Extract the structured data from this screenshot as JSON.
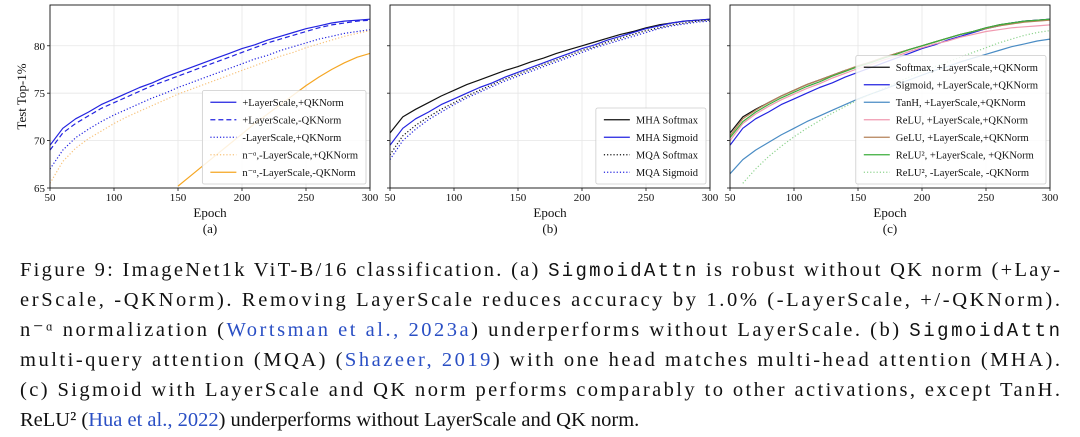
{
  "chart_data": [
    {
      "type": "line",
      "label": "(a)",
      "xlabel": "Epoch",
      "ylabel": "Test Top-1%",
      "x": [
        50,
        60,
        70,
        80,
        90,
        100,
        110,
        120,
        130,
        140,
        150,
        160,
        170,
        180,
        190,
        200,
        210,
        220,
        230,
        240,
        250,
        260,
        270,
        280,
        290,
        300
      ],
      "xlim": [
        50,
        300
      ],
      "ylim": [
        65,
        84.3
      ],
      "xticks": [
        50,
        100,
        150,
        200,
        250,
        300
      ],
      "yticks": [
        65,
        70,
        75,
        80
      ],
      "grid": true,
      "legend": "lower right",
      "series": [
        {
          "name": "+LayerScale,+QKNorm",
          "color": "#2323e0",
          "dash": "solid",
          "values": [
            69.5,
            71.3,
            72.3,
            73.0,
            73.8,
            74.4,
            75.0,
            75.6,
            76.1,
            76.7,
            77.2,
            77.7,
            78.2,
            78.7,
            79.2,
            79.7,
            80.1,
            80.6,
            81.0,
            81.4,
            81.8,
            82.1,
            82.4,
            82.6,
            82.7,
            82.8
          ]
        },
        {
          "name": "+LayerScale,-QKNorm",
          "color": "#2323e0",
          "dash": "dashed",
          "values": [
            69.0,
            70.8,
            71.8,
            72.6,
            73.4,
            74.0,
            74.6,
            75.2,
            75.8,
            76.3,
            76.8,
            77.3,
            77.8,
            78.3,
            78.8,
            79.3,
            79.8,
            80.3,
            80.7,
            81.1,
            81.5,
            81.9,
            82.2,
            82.4,
            82.6,
            82.7
          ]
        },
        {
          "name": "-LayerScale,+QKNorm",
          "color": "#2323e0",
          "dash": "dotted",
          "values": [
            67.0,
            69.0,
            70.3,
            71.2,
            72.0,
            72.7,
            73.3,
            73.9,
            74.5,
            75.0,
            75.6,
            76.1,
            76.6,
            77.1,
            77.6,
            78.1,
            78.6,
            79.0,
            79.5,
            79.9,
            80.3,
            80.7,
            81.0,
            81.3,
            81.5,
            81.7
          ]
        },
        {
          "name": "n⁻ᵅ,-LayerScale,+QKNorm",
          "color": "#f7c27a",
          "dash": "dotted",
          "values": [
            65.5,
            67.8,
            69.2,
            70.2,
            71.0,
            71.8,
            72.5,
            73.1,
            73.7,
            74.3,
            74.9,
            75.4,
            75.9,
            76.4,
            76.9,
            77.4,
            77.9,
            78.4,
            78.9,
            79.3,
            79.8,
            80.2,
            80.6,
            81.0,
            81.3,
            81.6
          ]
        },
        {
          "name": "n⁻ᵅ,-LayerScale,-QKNorm",
          "color": "#f5a623",
          "dash": "solid",
          "values": [
            null,
            null,
            null,
            null,
            null,
            null,
            null,
            null,
            null,
            null,
            65.2,
            66.3,
            67.4,
            68.5,
            69.6,
            70.7,
            71.8,
            72.8,
            73.8,
            74.8,
            75.8,
            76.7,
            77.5,
            78.2,
            78.8,
            79.2
          ]
        }
      ]
    },
    {
      "type": "line",
      "label": "(b)",
      "xlabel": "Epoch",
      "x": [
        50,
        60,
        70,
        80,
        90,
        100,
        110,
        120,
        130,
        140,
        150,
        160,
        170,
        180,
        190,
        200,
        210,
        220,
        230,
        240,
        250,
        260,
        270,
        280,
        290,
        300
      ],
      "xlim": [
        50,
        300
      ],
      "ylim": [
        65,
        84.3
      ],
      "xticks": [
        50,
        100,
        150,
        200,
        250,
        300
      ],
      "yticks": [
        65,
        70,
        75,
        80
      ],
      "grid": true,
      "legend": "lower right",
      "series": [
        {
          "name": "MHA Softmax",
          "color": "#111111",
          "dash": "solid",
          "values": [
            70.8,
            72.5,
            73.3,
            74.0,
            74.7,
            75.3,
            75.9,
            76.4,
            76.9,
            77.4,
            77.8,
            78.3,
            78.7,
            79.2,
            79.6,
            80.0,
            80.4,
            80.8,
            81.2,
            81.5,
            81.9,
            82.2,
            82.4,
            82.6,
            82.7,
            82.8
          ]
        },
        {
          "name": "MHA Sigmoid",
          "color": "#2323e0",
          "dash": "solid",
          "values": [
            69.5,
            71.3,
            72.3,
            73.0,
            73.8,
            74.4,
            75.0,
            75.6,
            76.1,
            76.7,
            77.2,
            77.7,
            78.2,
            78.7,
            79.2,
            79.7,
            80.1,
            80.6,
            81.0,
            81.4,
            81.8,
            82.1,
            82.4,
            82.6,
            82.7,
            82.8
          ]
        },
        {
          "name": "MQA Softmax",
          "color": "#111111",
          "dash": "dotted",
          "values": [
            68.5,
            70.5,
            71.6,
            72.5,
            73.3,
            74.0,
            74.7,
            75.3,
            75.9,
            76.5,
            77.0,
            77.5,
            78.0,
            78.5,
            79.0,
            79.5,
            79.9,
            80.4,
            80.8,
            81.2,
            81.6,
            81.9,
            82.2,
            82.4,
            82.6,
            82.7
          ]
        },
        {
          "name": "MQA Sigmoid",
          "color": "#2323e0",
          "dash": "dotted",
          "values": [
            68.0,
            70.0,
            71.2,
            72.2,
            73.0,
            73.8,
            74.5,
            75.1,
            75.7,
            76.3,
            76.8,
            77.3,
            77.8,
            78.3,
            78.8,
            79.3,
            79.8,
            80.2,
            80.6,
            81.0,
            81.4,
            81.8,
            82.1,
            82.3,
            82.5,
            82.6
          ]
        }
      ]
    },
    {
      "type": "line",
      "label": "(c)",
      "xlabel": "Epoch",
      "x": [
        50,
        60,
        70,
        80,
        90,
        100,
        110,
        120,
        130,
        140,
        150,
        160,
        170,
        180,
        190,
        200,
        210,
        220,
        230,
        240,
        250,
        260,
        270,
        280,
        290,
        300
      ],
      "xlim": [
        50,
        300
      ],
      "ylim": [
        65,
        84.3
      ],
      "xticks": [
        50,
        100,
        150,
        200,
        250,
        300
      ],
      "yticks": [
        65,
        70,
        75,
        80
      ],
      "grid": true,
      "legend": "lower right",
      "series": [
        {
          "name": "Softmax, +LayerScale,+QKNorm",
          "color": "#111111",
          "dash": "solid",
          "values": [
            70.8,
            72.5,
            73.3,
            74.0,
            74.7,
            75.3,
            75.9,
            76.4,
            76.9,
            77.4,
            77.8,
            78.3,
            78.7,
            79.2,
            79.6,
            80.0,
            80.4,
            80.8,
            81.2,
            81.5,
            81.9,
            82.2,
            82.4,
            82.6,
            82.7,
            82.8
          ]
        },
        {
          "name": "Sigmoid, +LayerScale,+QKNorm",
          "color": "#2323e0",
          "dash": "solid",
          "values": [
            69.5,
            71.3,
            72.3,
            73.0,
            73.8,
            74.4,
            75.0,
            75.6,
            76.1,
            76.7,
            77.2,
            77.7,
            78.2,
            78.7,
            79.2,
            79.7,
            80.1,
            80.6,
            81.0,
            81.4,
            81.8,
            82.1,
            82.4,
            82.6,
            82.7,
            82.8
          ]
        },
        {
          "name": "TanH, +LayerScale,+QKNorm",
          "color": "#4a8cc4",
          "dash": "solid",
          "values": [
            66.5,
            68.0,
            69.0,
            69.8,
            70.6,
            71.3,
            72.0,
            72.6,
            73.2,
            73.8,
            74.4,
            74.9,
            75.4,
            75.9,
            76.4,
            76.9,
            77.4,
            77.8,
            78.3,
            78.7,
            79.1,
            79.5,
            79.9,
            80.2,
            80.5,
            80.7
          ]
        },
        {
          "name": "ReLU, +LayerScale,+QKNorm",
          "color": "#f09ab0",
          "dash": "solid",
          "values": [
            70.0,
            71.8,
            72.8,
            73.6,
            74.3,
            74.9,
            75.5,
            76.0,
            76.6,
            77.1,
            77.6,
            78.0,
            78.5,
            78.9,
            79.4,
            79.8,
            80.2,
            80.5,
            80.9,
            81.2,
            81.5,
            81.7,
            81.9,
            82.0,
            82.1,
            82.2
          ]
        },
        {
          "name": "GeLU, +LayerScale,+QKNorm",
          "color": "#b5835a",
          "dash": "solid",
          "values": [
            70.5,
            72.3,
            73.2,
            74.0,
            74.7,
            75.3,
            75.9,
            76.4,
            76.9,
            77.4,
            77.9,
            78.3,
            78.8,
            79.2,
            79.6,
            80.0,
            80.4,
            80.8,
            81.2,
            81.5,
            81.8,
            82.1,
            82.3,
            82.5,
            82.6,
            82.7
          ]
        },
        {
          "name": "ReLU², +LayerScale, +QKNorm",
          "color": "#3cae3c",
          "dash": "solid",
          "values": [
            70.3,
            72.0,
            73.0,
            73.8,
            74.5,
            75.1,
            75.7,
            76.2,
            76.8,
            77.3,
            77.8,
            78.2,
            78.7,
            79.1,
            79.6,
            80.0,
            80.4,
            80.8,
            81.2,
            81.5,
            81.9,
            82.2,
            82.4,
            82.6,
            82.7,
            82.8
          ]
        },
        {
          "name": "ReLU², -LayerScale, -QKNorm",
          "color": "#8fd48f",
          "dash": "dotted",
          "values": [
            null,
            65.5,
            67.0,
            68.3,
            69.4,
            70.4,
            71.3,
            72.1,
            72.9,
            73.6,
            74.3,
            74.9,
            75.5,
            76.1,
            76.7,
            77.3,
            77.8,
            78.3,
            78.8,
            79.3,
            79.8,
            80.3,
            80.7,
            81.1,
            81.4,
            81.6
          ]
        }
      ]
    }
  ],
  "caption": [
    [
      {
        "text": "Figure 9: ImageNet1k ViT-B/16 classification. (a) "
      },
      {
        "text": "SigmoidAttn",
        "font": "monospace"
      },
      {
        "text": " is robust without QK norm (+Lay-"
      }
    ],
    [
      {
        "text": "erScale, -QKNorm). Removing LayerScale reduces accuracy by 1.0% (-LayerScale, +/-QKNorm)."
      }
    ],
    [
      {
        "text": "n⁻ᵅ normalization ("
      },
      {
        "text": "Wortsman et al., 2023a",
        "color": "#2a4fc4"
      },
      {
        "text": ") underperforms without LayerScale. (b) "
      },
      {
        "text": "SigmoidAttn",
        "font": "monospace"
      }
    ],
    [
      {
        "text": "multi-query attention (MQA) ("
      },
      {
        "text": "Shazeer, 2019",
        "color": "#2a4fc4"
      },
      {
        "text": ") with one head matches multi-head attention (MHA)."
      }
    ],
    [
      {
        "text": "(c) Sigmoid with LayerScale and QK norm performs comparably to other activations, except TanH."
      }
    ],
    [
      {
        "text": "ReLU² ("
      },
      {
        "text": "Hua et al., 2022",
        "color": "#2a4fc4"
      },
      {
        "text": ") underperforms without LayerScale and QK norm."
      }
    ]
  ]
}
